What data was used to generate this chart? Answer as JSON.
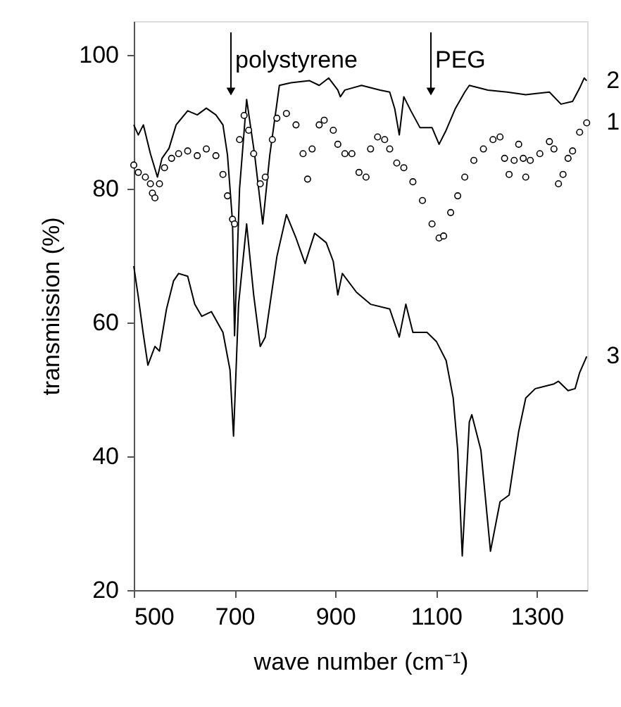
{
  "chart_data": {
    "type": "line",
    "xlabel": "wave number (cm⁻¹)",
    "ylabel": "transmission (%)",
    "xlim": [
      500,
      1400
    ],
    "ylim": [
      20,
      105
    ],
    "xticks": [
      500,
      700,
      900,
      1100,
      1300
    ],
    "yticks": [
      20,
      40,
      60,
      80,
      100
    ],
    "grid": false,
    "annotations": [
      "polystyrene",
      "PEG"
    ],
    "series": [
      {
        "name": "2",
        "color": "#000000",
        "x": [
          500,
          509,
          519,
          533,
          547,
          556,
          570,
          584,
          607,
          626,
          644,
          663,
          677,
          686,
          696,
          700,
          710,
          724,
          740,
          756,
          770,
          789,
          812,
          849,
          868,
          887,
          905,
          910,
          919,
          952,
          989,
          1008,
          1018,
          1027,
          1036,
          1050,
          1068,
          1092,
          1106,
          1120,
          1138,
          1157,
          1166,
          1203,
          1241,
          1278,
          1325,
          1348,
          1371,
          1385,
          1394,
          1399
        ],
        "values": [
          89.5,
          88,
          89.5,
          85.2,
          81.7,
          84.5,
          86,
          89.5,
          91.6,
          91,
          92,
          91,
          89.5,
          85,
          75,
          58,
          80,
          93.3,
          85,
          74.7,
          85,
          95.4,
          95.8,
          96.1,
          95.4,
          96.5,
          94.7,
          93.7,
          94.7,
          95.4,
          94.7,
          94.4,
          91.9,
          88,
          93.7,
          91.6,
          89.1,
          89.1,
          86.6,
          88.7,
          91.9,
          94.4,
          95.4,
          94.7,
          94.4,
          94,
          94.4,
          92.6,
          93,
          95,
          96.5,
          96.1
        ]
      },
      {
        "name": "1",
        "type": "scatter",
        "marker": "circle",
        "color": "#000000",
        "x": [
          500,
          509,
          523,
          533,
          537,
          542,
          551,
          561,
          575,
          589,
          607,
          626,
          644,
          663,
          677,
          686,
          696,
          700,
          710,
          719,
          728,
          738,
          751,
          761,
          775,
          784,
          803,
          822,
          836,
          845,
          854,
          868,
          878,
          896,
          905,
          919,
          933,
          947,
          961,
          970,
          984,
          998,
          1008,
          1022,
          1036,
          1054,
          1073,
          1092,
          1106,
          1115,
          1129,
          1143,
          1157,
          1175,
          1194,
          1213,
          1227,
          1236,
          1245,
          1255,
          1264,
          1273,
          1278,
          1287,
          1306,
          1325,
          1334,
          1343,
          1352,
          1362,
          1371,
          1385,
          1399
        ],
        "values": [
          83.5,
          82.4,
          81.7,
          80.7,
          79.3,
          78.6,
          80.7,
          83.1,
          84.5,
          85.2,
          85.6,
          84.9,
          85.9,
          84.9,
          82.1,
          78.9,
          75.4,
          74.7,
          87.3,
          90.9,
          88.7,
          85.2,
          80.7,
          81.7,
          87.3,
          90.5,
          91.2,
          89.5,
          85.2,
          81.4,
          85.9,
          89.5,
          90.2,
          88.7,
          86.6,
          85.2,
          85.2,
          82.4,
          81.7,
          85.9,
          87.7,
          87.3,
          85.9,
          83.8,
          83.1,
          81,
          78.2,
          74.7,
          72.6,
          72.9,
          76.4,
          78.9,
          81.7,
          84.2,
          85.9,
          87.3,
          87.7,
          84.5,
          82.1,
          84.2,
          86.6,
          84.5,
          81.7,
          84.2,
          85.2,
          87,
          85.9,
          80.7,
          82.1,
          84.5,
          85.6,
          88.4,
          89.8
        ]
      },
      {
        "name": "3",
        "color": "#000000",
        "x": [
          500,
          509,
          519,
          528,
          542,
          551,
          565,
          579,
          589,
          607,
          621,
          635,
          654,
          677,
          691,
          698,
          708,
          724,
          738,
          751,
          761,
          784,
          803,
          822,
          840,
          859,
          882,
          896,
          905,
          914,
          942,
          970,
          1008,
          1027,
          1040,
          1054,
          1082,
          1101,
          1120,
          1134,
          1143,
          1152,
          1166,
          1171,
          1189,
          1208,
          1227,
          1245,
          1264,
          1278,
          1297,
          1334,
          1343,
          1362,
          1376,
          1385,
          1399
        ],
        "values": [
          68.4,
          63.8,
          58.2,
          53.6,
          56.4,
          55.7,
          62,
          66.2,
          67.3,
          66.9,
          62.7,
          60.9,
          61.6,
          58.5,
          52.9,
          43,
          62.7,
          74.7,
          64.1,
          56.4,
          57.8,
          69.8,
          76.1,
          72.6,
          68.8,
          73.3,
          71.9,
          69.1,
          64.1,
          67.3,
          64.5,
          62.7,
          62,
          57.8,
          62.7,
          58.5,
          58.5,
          57.1,
          54.3,
          48.7,
          40.9,
          25.1,
          45.1,
          46.2,
          40.9,
          25.8,
          33.2,
          34.2,
          43.7,
          48.7,
          50.1,
          50.8,
          51.2,
          49.8,
          50.1,
          52.5,
          54.9
        ]
      }
    ]
  }
}
